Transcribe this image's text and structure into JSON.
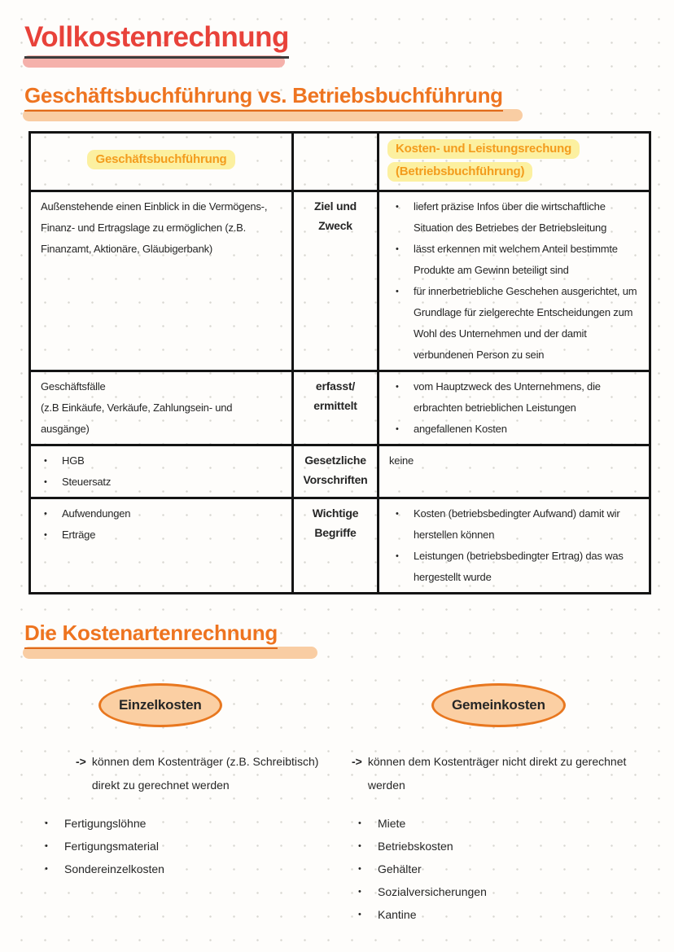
{
  "page": {
    "title": "Vollkostenrechnung",
    "comparison_heading": "Geschäftsbuchführung vs. Betriebsbuchführung"
  },
  "colors": {
    "title_red": "#e8423a",
    "title_band": "#f5b1ab",
    "heading_orange": "#ee7420",
    "heading_band": "#f9cda3",
    "th_orange": "#f39c1d",
    "th_highlight": "#fcf0a0",
    "oval_fill": "#fbcfa3",
    "oval_border": "#e8771f"
  },
  "table": {
    "header": {
      "left": "Geschäftsbuchführung",
      "right_line1": "Kosten- und Leistungsrechung",
      "right_line2": "(Betriebsbuchführung)"
    },
    "rows": [
      {
        "label_line1": "Ziel und",
        "label_line2": "Zweck",
        "left_text": "Außenstehende einen Einblick in die Vermögens-, Finanz- und Ertragslage zu ermöglichen (z.B. Finanzamt, Aktionäre, Gläubigerbank)",
        "right_bullets": [
          "liefert präzise Infos über die wirtschaftliche Situation des Betriebes der Betriebsleitung",
          "lässt erkennen mit welchem Anteil bestimmte Produkte am Gewinn beteiligt sind",
          "für innerbetriebliche Geschehen ausgerichtet, um Grundlage für zielgerechte Entscheidungen zum Wohl des Unternehmen und der damit verbundenen Person zu sein"
        ]
      },
      {
        "label_line1": "erfasst/",
        "label_line2": "ermittelt",
        "left_line1": "Geschäftsfälle",
        "left_line2": "(z.B Einkäufe, Verkäufe, Zahlungsein- und ausgänge)",
        "right_bullets": [
          "vom Hauptzweck des Unternehmens, die erbrachten betrieblichen Leistungen",
          "angefallenen Kosten"
        ]
      },
      {
        "label_line1": "Gesetzliche",
        "label_line2": "Vorschriften",
        "left_bullets": [
          "HGB",
          "Steuersatz"
        ],
        "right_text": "keine"
      },
      {
        "label_line1": "Wichtige",
        "label_line2": "Begriffe",
        "left_bullets": [
          "Aufwendungen",
          "Erträge"
        ],
        "right_bullets": [
          "Kosten (betriebsbedingter Aufwand) damit wir herstellen können",
          "Leistungen (betriebsbedingter Ertrag) das was hergestellt wurde"
        ]
      }
    ]
  },
  "kostenarten": {
    "heading": "Die Kostenartenrechnung",
    "einzelkosten": {
      "badge": "Einzelkosten",
      "arrow": "->",
      "note": "können dem Kostenträger (z.B. Schreibtisch) direkt zu gerechnet werden",
      "items": [
        "Fertigungslöhne",
        "Fertigungsmaterial",
        "Sondereinzelkosten"
      ]
    },
    "gemeinkosten": {
      "badge": "Gemeinkosten",
      "arrow": "->",
      "note": "können dem Kostenträger nicht direkt zu gerechnet werden",
      "items": [
        "Miete",
        "Betriebskosten",
        "Gehälter",
        "Sozialversicherungen",
        "Kantine"
      ]
    }
  }
}
